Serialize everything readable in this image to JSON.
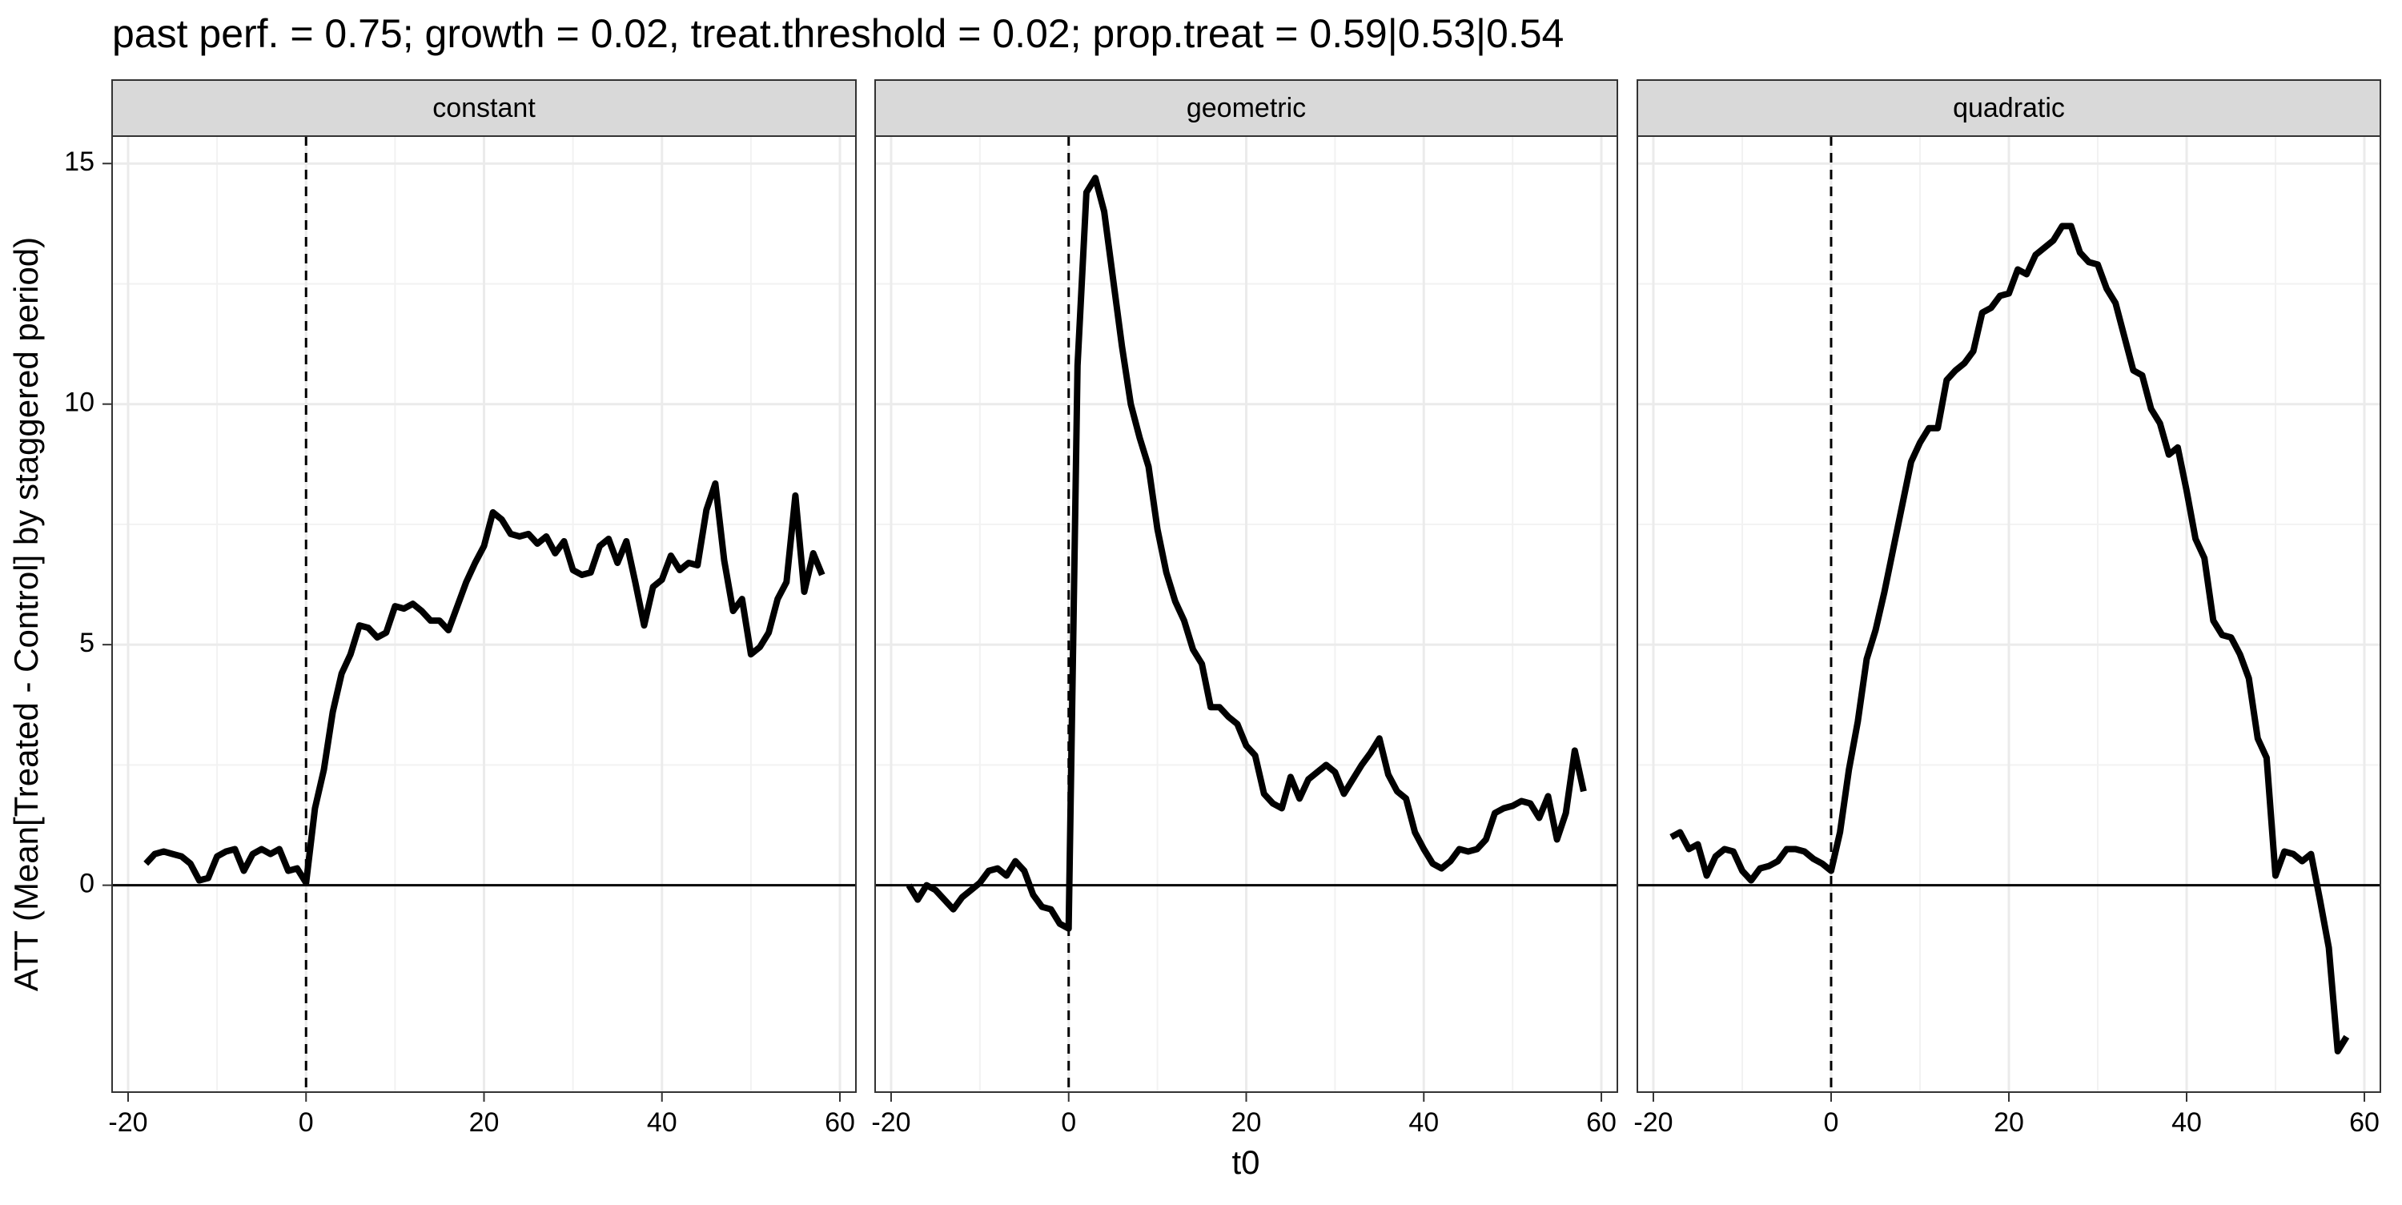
{
  "chart_data": {
    "type": "line",
    "title": "past perf. = 0.75; growth = 0.02,  treat.threshold = 0.02;  prop.treat = 0.59|0.53|0.54",
    "xlabel": "t0",
    "ylabel": "ATT (Mean[Treated - Control] by staggered period)",
    "x": [
      -18,
      -17,
      -16,
      -15,
      -14,
      -13,
      -12,
      -11,
      -10,
      -9,
      -8,
      -7,
      -6,
      -5,
      -4,
      -3,
      -2,
      -1,
      0,
      1,
      2,
      3,
      4,
      5,
      6,
      7,
      8,
      9,
      10,
      11,
      12,
      13,
      14,
      15,
      16,
      17,
      18,
      19,
      20,
      21,
      22,
      23,
      24,
      25,
      26,
      27,
      28,
      29,
      30,
      31,
      32,
      33,
      34,
      35,
      36,
      37,
      38,
      39,
      40,
      41,
      42,
      43,
      44,
      45,
      46,
      47,
      48,
      49,
      50,
      51,
      52,
      53,
      54,
      55,
      56,
      57,
      58
    ],
    "facets": [
      {
        "title": "constant",
        "color": "#000000",
        "values": [
          0.45,
          0.65,
          0.7,
          0.65,
          0.6,
          0.45,
          0.1,
          0.15,
          0.6,
          0.7,
          0.75,
          0.3,
          0.65,
          0.75,
          0.65,
          0.75,
          0.3,
          0.35,
          0.05,
          1.6,
          2.4,
          3.6,
          4.4,
          4.8,
          5.4,
          5.35,
          5.15,
          5.25,
          5.8,
          5.75,
          5.85,
          5.7,
          5.5,
          5.5,
          5.3,
          5.8,
          6.3,
          6.7,
          7.05,
          7.75,
          7.6,
          7.3,
          7.25,
          7.3,
          7.1,
          7.25,
          6.9,
          7.15,
          6.55,
          6.45,
          6.5,
          7.05,
          7.2,
          6.7,
          7.15,
          6.3,
          5.4,
          6.2,
          6.35,
          6.85,
          6.55,
          6.7,
          6.65,
          7.8,
          8.35,
          6.75,
          5.7,
          5.95,
          4.8,
          4.95,
          5.25,
          5.95,
          6.3,
          8.1,
          6.1,
          6.9,
          6.45
        ]
      },
      {
        "title": "geometric",
        "color": "#000000",
        "values": [
          0,
          -0.3,
          0,
          -0.1,
          -0.3,
          -0.5,
          -0.25,
          -0.1,
          0.05,
          0.3,
          0.35,
          0.2,
          0.5,
          0.3,
          -0.2,
          -0.45,
          -0.5,
          -0.8,
          -0.9,
          10.8,
          14.4,
          14.7,
          14,
          12.6,
          11.2,
          10,
          9.3,
          8.7,
          7.4,
          6.5,
          5.9,
          5.5,
          4.9,
          4.6,
          3.7,
          3.7,
          3.5,
          3.35,
          2.9,
          2.7,
          1.9,
          1.7,
          1.6,
          2.25,
          1.8,
          2.2,
          2.35,
          2.5,
          2.35,
          1.9,
          2.2,
          2.5,
          2.75,
          3.05,
          2.3,
          1.95,
          1.8,
          1.1,
          0.75,
          0.45,
          0.35,
          0.5,
          0.75,
          0.7,
          0.75,
          0.95,
          1.5,
          1.6,
          1.65,
          1.75,
          1.7,
          1.4,
          1.85,
          0.95,
          1.5,
          2.8,
          1.95
        ]
      },
      {
        "title": "quadratic",
        "color": "#000000",
        "values": [
          1.0,
          1.1,
          0.75,
          0.85,
          0.2,
          0.6,
          0.75,
          0.7,
          0.3,
          0.1,
          0.35,
          0.4,
          0.5,
          0.75,
          0.75,
          0.7,
          0.55,
          0.45,
          0.3,
          1.1,
          2.4,
          3.4,
          4.7,
          5.3,
          6.1,
          7.0,
          7.9,
          8.8,
          9.2,
          9.5,
          9.5,
          10.5,
          10.7,
          10.85,
          11.1,
          11.9,
          12.0,
          12.25,
          12.3,
          12.8,
          12.7,
          13.1,
          13.25,
          13.4,
          13.7,
          13.7,
          13.15,
          12.95,
          12.9,
          12.4,
          12.1,
          11.4,
          10.7,
          10.6,
          9.9,
          9.6,
          8.95,
          9.1,
          8.2,
          7.2,
          6.8,
          5.5,
          5.2,
          5.15,
          4.8,
          4.3,
          3.05,
          2.65,
          0.2,
          0.7,
          0.65,
          0.5,
          0.65,
          -0.3,
          -1.3,
          -3.45,
          -3.15
        ]
      }
    ],
    "xlim": [
      -21.8,
      61.8
    ],
    "ylim": [
      -4.3,
      15.57
    ],
    "xticks": [
      -20,
      0,
      20,
      40,
      60
    ],
    "yticks": [
      0,
      5,
      10,
      15
    ],
    "vline": 0,
    "hline": 0,
    "grid": true
  }
}
